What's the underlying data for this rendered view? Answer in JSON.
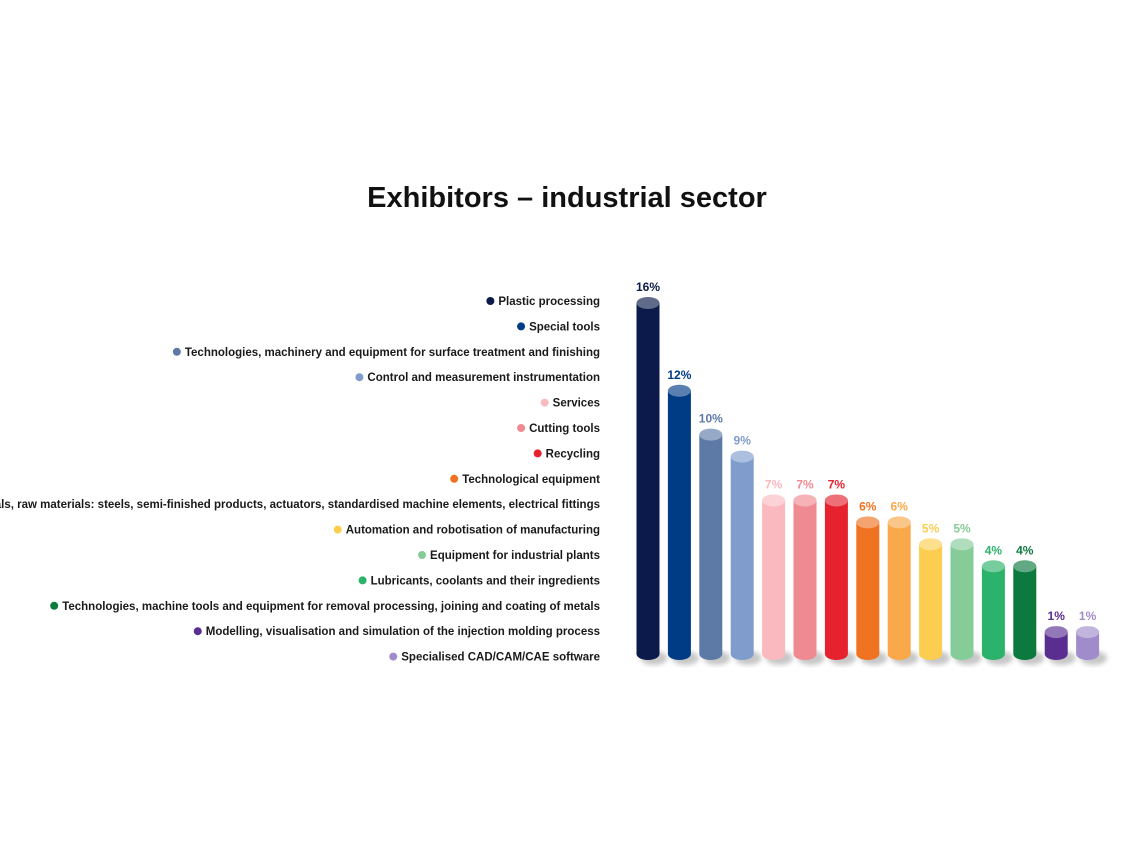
{
  "chart_data": {
    "type": "bar",
    "style": "3d-cylinder",
    "title": "Exhibitors – industrial sector",
    "value_suffix": "%",
    "legend_placement": "left",
    "grid": false,
    "ylim": [
      0,
      16
    ],
    "series": [
      {
        "points": [
          {
            "label": "Plastic processing",
            "value": 16,
            "color": "#0b1a4a"
          },
          {
            "label": "Special tools",
            "value": 12,
            "color": "#003b85"
          },
          {
            "label": "Technologies, machinery and equipment for surface treatment and finishing",
            "value": 10,
            "color": "#5d7aa6"
          },
          {
            "label": "Control and measurement instrumentation",
            "value": 9,
            "color": "#7f9ccc"
          },
          {
            "label": "Services",
            "value": 7,
            "color": "#f9b9bf"
          },
          {
            "label": "Cutting tools",
            "value": 7,
            "color": "#f08a92"
          },
          {
            "label": "Recycling",
            "value": 7,
            "color": "#e5222e"
          },
          {
            "label": "Technological equipment",
            "value": 6,
            "color": "#f07321"
          },
          {
            "label": "Materials, raw materials: steels, semi-finished products, actuators, standardised machine elements, electrical fittings",
            "value": 6,
            "color": "#f9a84a"
          },
          {
            "label": "Automation and robotisation of manufacturing",
            "value": 5,
            "color": "#fccd4f"
          },
          {
            "label": "Equipment for industrial plants",
            "value": 5,
            "color": "#86cc98"
          },
          {
            "label": "Lubricants, coolants and their ingredients",
            "value": 4,
            "color": "#2cb36b"
          },
          {
            "label": "Technologies, machine tools and equipment for removal processing, joining and coating of metals",
            "value": 4,
            "color": "#0c7a3e"
          },
          {
            "label": "Modelling, visualisation and simulation of the injection molding process",
            "value": 1,
            "color": "#5a2d91"
          },
          {
            "label": "Specialised CAD/CAM/CAE software",
            "value": 1,
            "color": "#a08ccb"
          }
        ]
      }
    ]
  }
}
